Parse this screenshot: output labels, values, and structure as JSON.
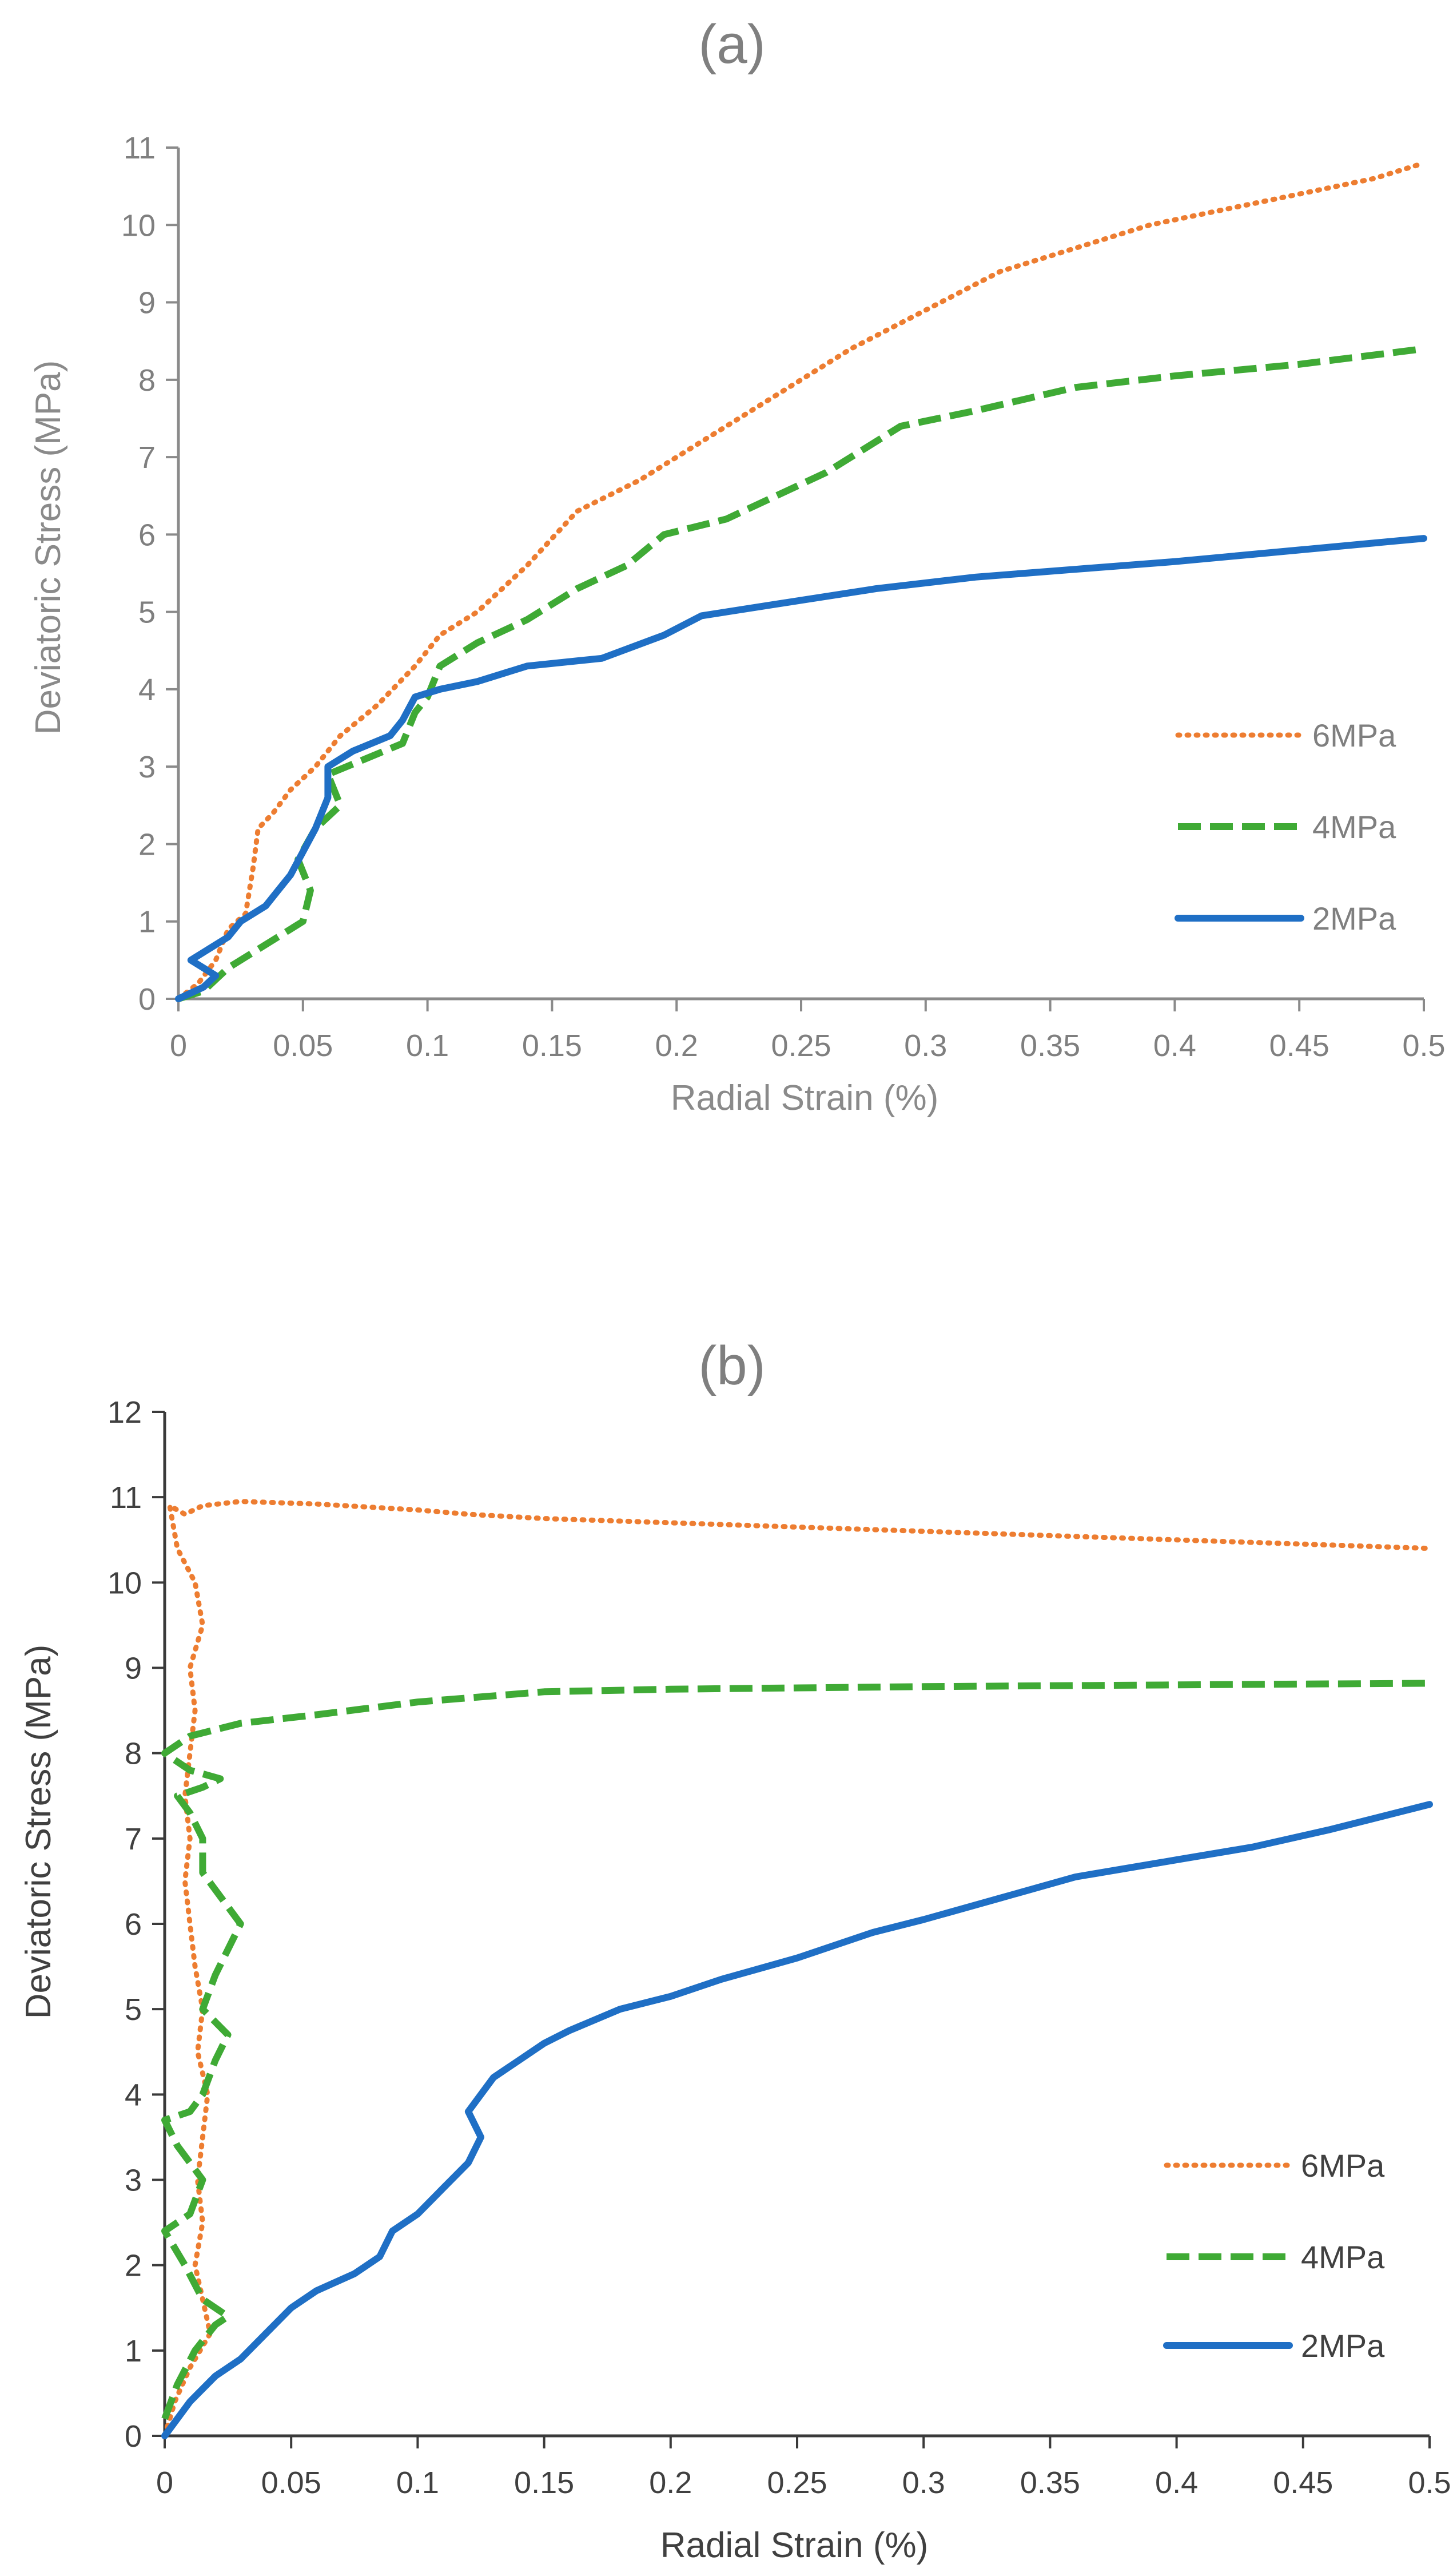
{
  "colors": {
    "orange": "#ED7D31",
    "green": "#3FAA35",
    "blue": "#1F6FC5",
    "axis_a": "#8a8a8a",
    "axis_b": "#3a3a3a",
    "text_a": "#7f7f7f",
    "text_b": "#404040"
  },
  "chart_data": [
    {
      "type": "line",
      "title": "(a)",
      "xlabel": "Radial Strain (%)",
      "ylabel": "Deviatoric Stress (MPa)",
      "xlim": [
        0,
        0.5
      ],
      "ylim": [
        0,
        11
      ],
      "xticks": [
        "0",
        "0.05",
        "0.1",
        "0.15",
        "0.2",
        "0.25",
        "0.3",
        "0.35",
        "0.4",
        "0.45",
        "0.5"
      ],
      "yticks": [
        "0",
        "1",
        "2",
        "3",
        "4",
        "5",
        "6",
        "7",
        "8",
        "9",
        "10",
        "11"
      ],
      "grid": false,
      "legend_position": "right",
      "series": [
        {
          "name": "6MPa",
          "color": "orange",
          "style": "dotted",
          "points": [
            [
              0,
              0
            ],
            [
              0.008,
              0.2
            ],
            [
              0.015,
              0.5
            ],
            [
              0.02,
              0.9
            ],
            [
              0.027,
              1.1
            ],
            [
              0.03,
              1.7
            ],
            [
              0.032,
              2.2
            ],
            [
              0.038,
              2.4
            ],
            [
              0.045,
              2.7
            ],
            [
              0.055,
              3.0
            ],
            [
              0.065,
              3.4
            ],
            [
              0.08,
              3.8
            ],
            [
              0.095,
              4.3
            ],
            [
              0.105,
              4.7
            ],
            [
              0.12,
              5.0
            ],
            [
              0.14,
              5.6
            ],
            [
              0.16,
              6.3
            ],
            [
              0.185,
              6.7
            ],
            [
              0.21,
              7.2
            ],
            [
              0.24,
              7.8
            ],
            [
              0.27,
              8.4
            ],
            [
              0.3,
              8.9
            ],
            [
              0.33,
              9.4
            ],
            [
              0.36,
              9.7
            ],
            [
              0.39,
              10.0
            ],
            [
              0.42,
              10.2
            ],
            [
              0.45,
              10.4
            ],
            [
              0.48,
              10.6
            ],
            [
              0.5,
              10.8
            ]
          ]
        },
        {
          "name": "4MPa",
          "color": "green",
          "style": "dashed",
          "points": [
            [
              0,
              0
            ],
            [
              0.01,
              0.1
            ],
            [
              0.02,
              0.4
            ],
            [
              0.03,
              0.6
            ],
            [
              0.04,
              0.8
            ],
            [
              0.05,
              1.0
            ],
            [
              0.053,
              1.4
            ],
            [
              0.048,
              1.8
            ],
            [
              0.055,
              2.2
            ],
            [
              0.065,
              2.5
            ],
            [
              0.06,
              2.9
            ],
            [
              0.075,
              3.1
            ],
            [
              0.09,
              3.3
            ],
            [
              0.095,
              3.7
            ],
            [
              0.1,
              3.9
            ],
            [
              0.105,
              4.3
            ],
            [
              0.12,
              4.6
            ],
            [
              0.14,
              4.9
            ],
            [
              0.16,
              5.3
            ],
            [
              0.18,
              5.6
            ],
            [
              0.195,
              6.0
            ],
            [
              0.22,
              6.2
            ],
            [
              0.24,
              6.5
            ],
            [
              0.26,
              6.8
            ],
            [
              0.275,
              7.1
            ],
            [
              0.29,
              7.4
            ],
            [
              0.32,
              7.6
            ],
            [
              0.36,
              7.9
            ],
            [
              0.4,
              8.05
            ],
            [
              0.45,
              8.2
            ],
            [
              0.5,
              8.4
            ]
          ]
        },
        {
          "name": "2MPa",
          "color": "blue",
          "style": "solid",
          "points": [
            [
              0,
              0
            ],
            [
              0.01,
              0.15
            ],
            [
              0.015,
              0.3
            ],
            [
              0.005,
              0.5
            ],
            [
              0.01,
              0.6
            ],
            [
              0.02,
              0.8
            ],
            [
              0.025,
              1.0
            ],
            [
              0.035,
              1.2
            ],
            [
              0.04,
              1.4
            ],
            [
              0.045,
              1.6
            ],
            [
              0.05,
              1.9
            ],
            [
              0.055,
              2.2
            ],
            [
              0.06,
              2.6
            ],
            [
              0.06,
              3.0
            ],
            [
              0.07,
              3.2
            ],
            [
              0.085,
              3.4
            ],
            [
              0.09,
              3.6
            ],
            [
              0.095,
              3.9
            ],
            [
              0.105,
              4.0
            ],
            [
              0.12,
              4.1
            ],
            [
              0.14,
              4.3
            ],
            [
              0.17,
              4.4
            ],
            [
              0.195,
              4.7
            ],
            [
              0.21,
              4.95
            ],
            [
              0.24,
              5.1
            ],
            [
              0.28,
              5.3
            ],
            [
              0.32,
              5.45
            ],
            [
              0.36,
              5.55
            ],
            [
              0.4,
              5.65
            ],
            [
              0.45,
              5.8
            ],
            [
              0.5,
              5.95
            ]
          ]
        }
      ]
    },
    {
      "type": "line",
      "title": "(b)",
      "xlabel": "Radial Strain (%)",
      "ylabel": "Deviatoric Stress (MPa)",
      "xlim": [
        0,
        0.5
      ],
      "ylim": [
        0,
        12
      ],
      "xticks": [
        "0",
        "0.05",
        "0.1",
        "0.15",
        "0.2",
        "0.25",
        "0.3",
        "0.35",
        "0.4",
        "0.45",
        "0.5"
      ],
      "yticks": [
        "0",
        "1",
        "2",
        "3",
        "4",
        "5",
        "6",
        "7",
        "8",
        "9",
        "10",
        "11",
        "12"
      ],
      "grid": false,
      "legend_position": "bottom-right",
      "series": [
        {
          "name": "6MPa",
          "color": "orange",
          "style": "dotted",
          "points": [
            [
              0,
              0
            ],
            [
              0.004,
              0.4
            ],
            [
              0.01,
              0.8
            ],
            [
              0.018,
              1.2
            ],
            [
              0.015,
              1.6
            ],
            [
              0.012,
              2.0
            ],
            [
              0.015,
              2.5
            ],
            [
              0.013,
              3.0
            ],
            [
              0.015,
              3.5
            ],
            [
              0.017,
              4.0
            ],
            [
              0.013,
              4.5
            ],
            [
              0.015,
              5.0
            ],
            [
              0.012,
              5.5
            ],
            [
              0.01,
              6.0
            ],
            [
              0.008,
              6.5
            ],
            [
              0.01,
              7.0
            ],
            [
              0.008,
              7.5
            ],
            [
              0.01,
              8.0
            ],
            [
              0.012,
              8.5
            ],
            [
              0.01,
              9.0
            ],
            [
              0.015,
              9.5
            ],
            [
              0.012,
              10.0
            ],
            [
              0.005,
              10.4
            ],
            [
              0.002,
              10.9
            ],
            [
              0.008,
              10.8
            ],
            [
              0.015,
              10.9
            ],
            [
              0.03,
              10.95
            ],
            [
              0.06,
              10.92
            ],
            [
              0.1,
              10.85
            ],
            [
              0.12,
              10.8
            ],
            [
              0.15,
              10.75
            ],
            [
              0.2,
              10.7
            ],
            [
              0.25,
              10.65
            ],
            [
              0.3,
              10.6
            ],
            [
              0.35,
              10.55
            ],
            [
              0.4,
              10.5
            ],
            [
              0.45,
              10.45
            ],
            [
              0.5,
              10.4
            ]
          ]
        },
        {
          "name": "4MPa",
          "color": "green",
          "style": "dashed",
          "points": [
            [
              0,
              0.2
            ],
            [
              0.005,
              0.6
            ],
            [
              0.012,
              1.0
            ],
            [
              0.02,
              1.3
            ],
            [
              0.025,
              1.4
            ],
            [
              0.015,
              1.6
            ],
            [
              0.008,
              2.0
            ],
            [
              0.0,
              2.4
            ],
            [
              0.01,
              2.6
            ],
            [
              0.015,
              3.0
            ],
            [
              0.005,
              3.4
            ],
            [
              0.0,
              3.7
            ],
            [
              0.01,
              3.8
            ],
            [
              0.015,
              4.0
            ],
            [
              0.02,
              4.4
            ],
            [
              0.025,
              4.7
            ],
            [
              0.015,
              5.0
            ],
            [
              0.02,
              5.4
            ],
            [
              0.03,
              6.0
            ],
            [
              0.025,
              6.2
            ],
            [
              0.015,
              6.6
            ],
            [
              0.015,
              7.0
            ],
            [
              0.01,
              7.3
            ],
            [
              0.005,
              7.5
            ],
            [
              0.015,
              7.6
            ],
            [
              0.022,
              7.7
            ],
            [
              0.01,
              7.8
            ],
            [
              0.0,
              8.0
            ],
            [
              0.01,
              8.2
            ],
            [
              0.03,
              8.35
            ],
            [
              0.06,
              8.45
            ],
            [
              0.1,
              8.6
            ],
            [
              0.15,
              8.72
            ],
            [
              0.2,
              8.75
            ],
            [
              0.3,
              8.78
            ],
            [
              0.4,
              8.8
            ],
            [
              0.5,
              8.82
            ]
          ]
        },
        {
          "name": "2MPa",
          "color": "blue",
          "style": "solid",
          "points": [
            [
              0,
              0
            ],
            [
              0.01,
              0.4
            ],
            [
              0.02,
              0.7
            ],
            [
              0.03,
              0.9
            ],
            [
              0.04,
              1.2
            ],
            [
              0.05,
              1.5
            ],
            [
              0.06,
              1.7
            ],
            [
              0.075,
              1.9
            ],
            [
              0.085,
              2.1
            ],
            [
              0.09,
              2.4
            ],
            [
              0.1,
              2.6
            ],
            [
              0.11,
              2.9
            ],
            [
              0.12,
              3.2
            ],
            [
              0.125,
              3.5
            ],
            [
              0.12,
              3.8
            ],
            [
              0.125,
              4.0
            ],
            [
              0.13,
              4.2
            ],
            [
              0.14,
              4.4
            ],
            [
              0.15,
              4.6
            ],
            [
              0.16,
              4.75
            ],
            [
              0.18,
              5.0
            ],
            [
              0.2,
              5.15
            ],
            [
              0.22,
              5.35
            ],
            [
              0.25,
              5.6
            ],
            [
              0.28,
              5.9
            ],
            [
              0.3,
              6.05
            ],
            [
              0.33,
              6.3
            ],
            [
              0.36,
              6.55
            ],
            [
              0.4,
              6.75
            ],
            [
              0.43,
              6.9
            ],
            [
              0.46,
              7.1
            ],
            [
              0.5,
              7.4
            ]
          ]
        }
      ]
    }
  ]
}
